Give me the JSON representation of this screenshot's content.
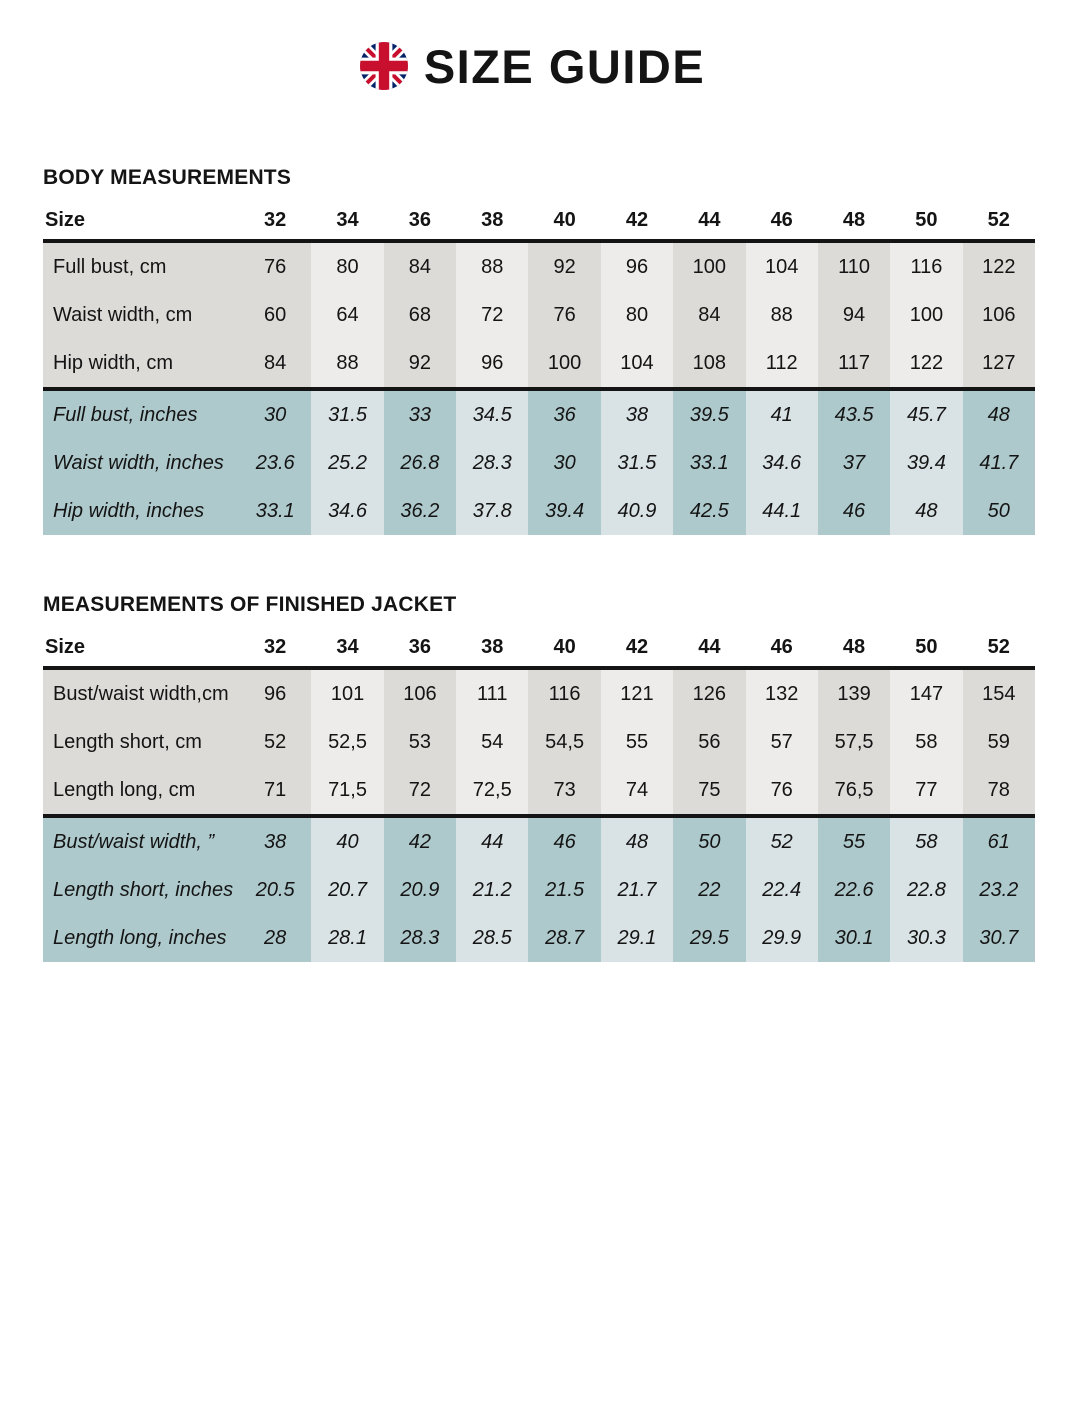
{
  "page": {
    "title": "SIZE GUIDE"
  },
  "icons": {
    "flag": "uk-flag-icon"
  },
  "colors": {
    "text": "#141414",
    "cm_band_dark": "#dcdbd8",
    "cm_band_light": "#edecea",
    "inch_band_dark": "#aec9cc",
    "inch_band_light": "#d9e2e4",
    "flag_red": "#c8102e",
    "flag_blue": "#012169"
  },
  "tables": [
    {
      "heading": "BODY MEASUREMENTS",
      "size_label": "Size",
      "sizes": [
        "32",
        "34",
        "36",
        "38",
        "40",
        "42",
        "44",
        "46",
        "48",
        "50",
        "52"
      ],
      "cm_rows": [
        {
          "label": "Full bust, cm",
          "values": [
            "76",
            "80",
            "84",
            "88",
            "92",
            "96",
            "100",
            "104",
            "110",
            "116",
            "122"
          ]
        },
        {
          "label": "Waist width, cm",
          "values": [
            "60",
            "64",
            "68",
            "72",
            "76",
            "80",
            "84",
            "88",
            "94",
            "100",
            "106"
          ]
        },
        {
          "label": "Hip width, cm",
          "values": [
            "84",
            "88",
            "92",
            "96",
            "100",
            "104",
            "108",
            "112",
            "117",
            "122",
            "127"
          ]
        }
      ],
      "inch_rows": [
        {
          "label": "Full bust, inches",
          "values": [
            "30",
            "31.5",
            "33",
            "34.5",
            "36",
            "38",
            "39.5",
            "41",
            "43.5",
            "45.7",
            "48"
          ]
        },
        {
          "label": "Waist width, inches",
          "values": [
            "23.6",
            "25.2",
            "26.8",
            "28.3",
            "30",
            "31.5",
            "33.1",
            "34.6",
            "37",
            "39.4",
            "41.7"
          ]
        },
        {
          "label": "Hip width, inches",
          "values": [
            "33.1",
            "34.6",
            "36.2",
            "37.8",
            "39.4",
            "40.9",
            "42.5",
            "44.1",
            "46",
            "48",
            "50"
          ]
        }
      ]
    },
    {
      "heading": "MEASUREMENTS OF FINISHED JACKET",
      "size_label": "Size",
      "sizes": [
        "32",
        "34",
        "36",
        "38",
        "40",
        "42",
        "44",
        "46",
        "48",
        "50",
        "52"
      ],
      "cm_rows": [
        {
          "label": "Bust/waist width,cm",
          "values": [
            "96",
            "101",
            "106",
            "111",
            "116",
            "121",
            "126",
            "132",
            "139",
            "147",
            "154"
          ]
        },
        {
          "label": "Length short, cm",
          "values": [
            "52",
            "52,5",
            "53",
            "54",
            "54,5",
            "55",
            "56",
            "57",
            "57,5",
            "58",
            "59"
          ]
        },
        {
          "label": "Length long, cm",
          "values": [
            "71",
            "71,5",
            "72",
            "72,5",
            "73",
            "74",
            "75",
            "76",
            "76,5",
            "77",
            "78"
          ]
        }
      ],
      "inch_rows": [
        {
          "label": "Bust/waist width, ”",
          "values": [
            "38",
            "40",
            "42",
            "44",
            "46",
            "48",
            "50",
            "52",
            "55",
            "58",
            "61"
          ]
        },
        {
          "label": "Length short, inches",
          "values": [
            "20.5",
            "20.7",
            "20.9",
            "21.2",
            "21.5",
            "21.7",
            "22",
            "22.4",
            "22.6",
            "22.8",
            "23.2"
          ]
        },
        {
          "label": "Length long, inches",
          "values": [
            "28",
            "28.1",
            "28.3",
            "28.5",
            "28.7",
            "29.1",
            "29.5",
            "29.9",
            "30.1",
            "30.3",
            "30.7"
          ]
        }
      ]
    }
  ]
}
